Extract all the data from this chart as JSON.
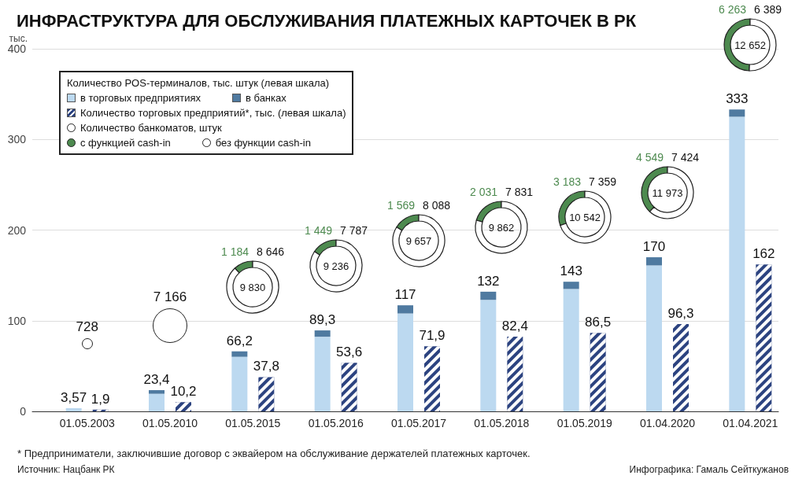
{
  "chart_data": [
    {
      "type": "bar",
      "title": "ИНФРАСТРУКТУРА ДЛЯ ОБСЛУЖИВАНИЯ ПЛАТЕЖНЫХ КАРТОЧЕК В РК",
      "ylabel": "тыс.",
      "legend_title": "Количество POS-терминалов, тыс. штук (левая шкала)",
      "legend": "top left",
      "stacked": true,
      "categories": [
        "01.05.2003",
        "01.05.2010",
        "01.05.2015",
        "01.05.2016",
        "01.05.2017",
        "01.05.2018",
        "01.05.2019",
        "01.04.2020",
        "01.04.2021"
      ],
      "series": [
        {
          "name": "в торговых предприятиях",
          "color": "#bcd9f0",
          "values": [
            3.57,
            19.4,
            60.2,
            82.3,
            108,
            123,
            135,
            161,
            325
          ]
        },
        {
          "name": "в банках",
          "color": "#4f7aa0",
          "values": [
            null,
            4,
            6,
            7,
            9,
            9,
            8,
            9,
            8
          ]
        }
      ],
      "totals": [
        "3,57",
        "23,4",
        "66,2",
        "89,3",
        "117",
        "132",
        "143",
        "170",
        "333"
      ],
      "ylim": [
        0,
        400
      ],
      "yticks": [
        0,
        100,
        200,
        300,
        400
      ],
      "grid": "y",
      "annotations": [
        "* Предприниматели, заключившие договор с эквайером на обслуживание держателей платежных карточек.",
        "Источник: Нацбанк РК",
        "Инфографика: Гамаль Сейткужанов"
      ]
    },
    {
      "type": "bar",
      "legend": "top left",
      "tick_labels": false,
      "categories": [
        "01.05.2003",
        "01.05.2010",
        "01.05.2015",
        "01.05.2016",
        "01.05.2017",
        "01.05.2018",
        "01.05.2019",
        "01.04.2020",
        "01.04.2021"
      ],
      "series": [
        {
          "name": "Количество торговых предприятий*, тыс. (левая шкала)",
          "color": "#2c4380",
          "values": [
            1.9,
            10.2,
            37.8,
            53.6,
            71.9,
            82.4,
            86.5,
            96.3,
            162
          ],
          "value_labels": [
            "1,9",
            "10,2",
            "37,8",
            "53,6",
            "71,9",
            "82,4",
            "86,5",
            "96,3",
            "162"
          ]
        }
      ],
      "ylim": [
        0,
        400
      ],
      "yticks": [
        0,
        100,
        200,
        300,
        400
      ]
    },
    {
      "type": "other",
      "values": [
        728
      ],
      "value_labels": [
        "728"
      ]
    },
    {
      "type": "other",
      "values": [
        7166
      ],
      "value_labels": [
        "7 166"
      ]
    },
    {
      "type": "donut",
      "legend": "top left",
      "legend_title": "Количество банкоматов, штук",
      "categories": [
        "с функцией cash-in",
        "без функции cash-in"
      ],
      "values": [
        1184,
        8646
      ],
      "colors": [
        "#4d8a4f",
        "#ffffff"
      ],
      "value_labels": [
        "1 184",
        "8 646"
      ],
      "totals": [
        "9 830"
      ]
    },
    {
      "type": "donut",
      "categories": [
        null,
        null
      ],
      "values": [
        1449,
        7787
      ],
      "colors": [
        "#4d8a4f",
        "#ffffff"
      ],
      "value_labels": [
        "1 449",
        "7 787"
      ],
      "totals": [
        "9 236"
      ]
    },
    {
      "type": "donut",
      "categories": [
        null,
        null
      ],
      "values": [
        1569,
        8088
      ],
      "colors": [
        "#4d8a4f",
        "#ffffff"
      ],
      "value_labels": [
        "1 569",
        "8 088"
      ],
      "totals": [
        "9 657"
      ]
    },
    {
      "type": "donut",
      "categories": [
        null,
        null
      ],
      "values": [
        2031,
        7831
      ],
      "colors": [
        "#4d8a4f",
        "#ffffff"
      ],
      "value_labels": [
        "2 031",
        "7 831"
      ],
      "totals": [
        "9 862"
      ]
    },
    {
      "type": "donut",
      "categories": [
        null,
        null
      ],
      "values": [
        3183,
        7359
      ],
      "colors": [
        "#4d8a4f",
        "#ffffff"
      ],
      "value_labels": [
        "3 183",
        "7 359"
      ],
      "totals": [
        "10 542"
      ]
    },
    {
      "type": "donut",
      "categories": [
        null,
        null
      ],
      "values": [
        4549,
        7424
      ],
      "colors": [
        "#4d8a4f",
        "#ffffff"
      ],
      "value_labels": [
        "4 549",
        "7 424"
      ],
      "totals": [
        "11 973"
      ]
    },
    {
      "type": "donut",
      "categories": [
        null,
        null
      ],
      "values": [
        6263,
        6389
      ],
      "colors": [
        "#4d8a4f",
        "#ffffff"
      ],
      "value_labels": [
        "6 263",
        "6 389"
      ],
      "totals": [
        "12 652"
      ]
    }
  ]
}
